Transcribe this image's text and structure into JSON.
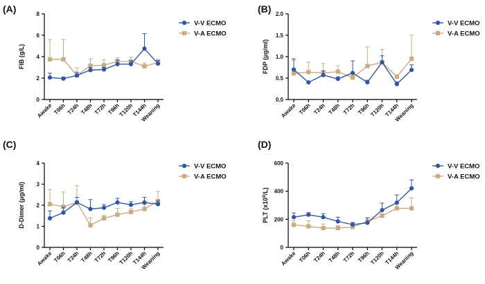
{
  "colors": {
    "vv": "#2f55a4",
    "va": "#c8ab82",
    "axis": "#000000"
  },
  "categories": [
    "Awake",
    "T06h",
    "T24h",
    "T48h",
    "T72h",
    "T96h",
    "T120h",
    "T144h",
    "Weaning"
  ],
  "chart_data": [
    {
      "id": "A",
      "panel_label": "(A)",
      "type": "line",
      "ylabel": "FIB (g/L)",
      "ylim": [
        0,
        8
      ],
      "yticks": [
        0,
        2,
        4,
        6,
        8
      ],
      "ytick_labels": [
        "0",
        "2",
        "4",
        "6",
        "8"
      ],
      "categories": [
        "Awake",
        "T06h",
        "T24h",
        "T48h",
        "T72h",
        "T96h",
        "T120h",
        "T144h",
        "Weaning"
      ],
      "series": [
        {
          "name": "V-V ECMO",
          "marker": "circle",
          "values": [
            2.05,
            1.95,
            2.25,
            2.75,
            2.8,
            3.3,
            3.3,
            4.75,
            3.35
          ],
          "err": [
            0.4,
            0.15,
            0.3,
            0.25,
            0.2,
            0.4,
            0.3,
            1.4,
            0.3
          ]
        },
        {
          "name": "V-A ECMO",
          "marker": "square",
          "values": [
            3.75,
            3.75,
            2.25,
            3.15,
            3.2,
            3.55,
            3.55,
            3.1,
            3.45
          ],
          "err": [
            1.85,
            1.85,
            0.7,
            0.65,
            0.5,
            0.35,
            0.4,
            0.3,
            0.3
          ]
        }
      ]
    },
    {
      "id": "B",
      "panel_label": "(B)",
      "type": "line",
      "ylabel": "FDP (μg/ml)",
      "ylim": [
        0,
        2.0
      ],
      "yticks": [
        0,
        0.5,
        1.0,
        1.5,
        2.0
      ],
      "ytick_labels": [
        "0.0",
        "0.5",
        "1.0",
        "1.5",
        "2.0"
      ],
      "categories": [
        "Awake",
        "T06h",
        "T24h",
        "T48h",
        "T72h",
        "T96h",
        "T120h",
        "T144h",
        "Weaning"
      ],
      "series": [
        {
          "name": "V-V ECMO",
          "marker": "circle",
          "values": [
            0.7,
            0.4,
            0.57,
            0.48,
            0.62,
            0.4,
            0.87,
            0.36,
            0.69
          ],
          "err": [
            0.25,
            0.0,
            0.1,
            0.05,
            0.28,
            0.05,
            0.15,
            0.05,
            0.12
          ]
        },
        {
          "name": "V-A ECMO",
          "marker": "square",
          "values": [
            0.61,
            0.64,
            0.62,
            0.65,
            0.51,
            0.78,
            0.87,
            0.53,
            0.95
          ],
          "err": [
            0.3,
            0.23,
            0.22,
            0.14,
            0.05,
            0.45,
            0.3,
            0.05,
            0.55
          ]
        }
      ]
    },
    {
      "id": "C",
      "panel_label": "(C)",
      "type": "line",
      "ylabel": "D-Dimer (μg/ml)",
      "ylim": [
        0,
        4
      ],
      "yticks": [
        0,
        1,
        2,
        3,
        4
      ],
      "ytick_labels": [
        "0",
        "1",
        "2",
        "3",
        "4"
      ],
      "categories": [
        "Awake",
        "T06h",
        "T24h",
        "T48h",
        "T72h",
        "T96h",
        "T120h",
        "T144h",
        "Weaning"
      ],
      "series": [
        {
          "name": "V-V ECMO",
          "marker": "circle",
          "values": [
            1.38,
            1.65,
            2.13,
            1.82,
            1.88,
            2.13,
            2.02,
            2.13,
            2.05
          ],
          "err": [
            0.35,
            0.25,
            0.25,
            0.45,
            0.15,
            0.2,
            0.15,
            0.25,
            0.15
          ]
        },
        {
          "name": "V-A ECMO",
          "marker": "square",
          "values": [
            2.05,
            1.93,
            2.13,
            1.05,
            1.38,
            1.55,
            1.68,
            1.82,
            2.2
          ],
          "err": [
            0.7,
            0.7,
            0.8,
            0.35,
            0.15,
            0.3,
            0.15,
            0.2,
            0.45
          ]
        }
      ]
    },
    {
      "id": "D",
      "panel_label": "(D)",
      "type": "line",
      "ylabel_prefix": "PLT (x10",
      "ylabel_sup": "9",
      "ylabel_suffix": "/L)",
      "ylim": [
        0,
        600
      ],
      "yticks": [
        0,
        200,
        400,
        600
      ],
      "ytick_labels": [
        "0",
        "200",
        "400",
        "600"
      ],
      "categories": [
        "Awake",
        "T06h",
        "T24h",
        "T48h",
        "T72h",
        "T96h",
        "T120h",
        "T144h",
        "Weaning"
      ],
      "series": [
        {
          "name": "V-V ECMO",
          "marker": "circle",
          "values": [
            215,
            232,
            215,
            185,
            162,
            175,
            265,
            318,
            420
          ],
          "err": [
            30,
            15,
            25,
            30,
            15,
            35,
            50,
            55,
            60
          ]
        },
        {
          "name": "V-A ECMO",
          "marker": "square",
          "values": [
            160,
            150,
            137,
            137,
            145,
            185,
            225,
            278,
            278
          ],
          "err": [
            30,
            40,
            30,
            20,
            15,
            25,
            35,
            30,
            75
          ]
        }
      ]
    }
  ]
}
